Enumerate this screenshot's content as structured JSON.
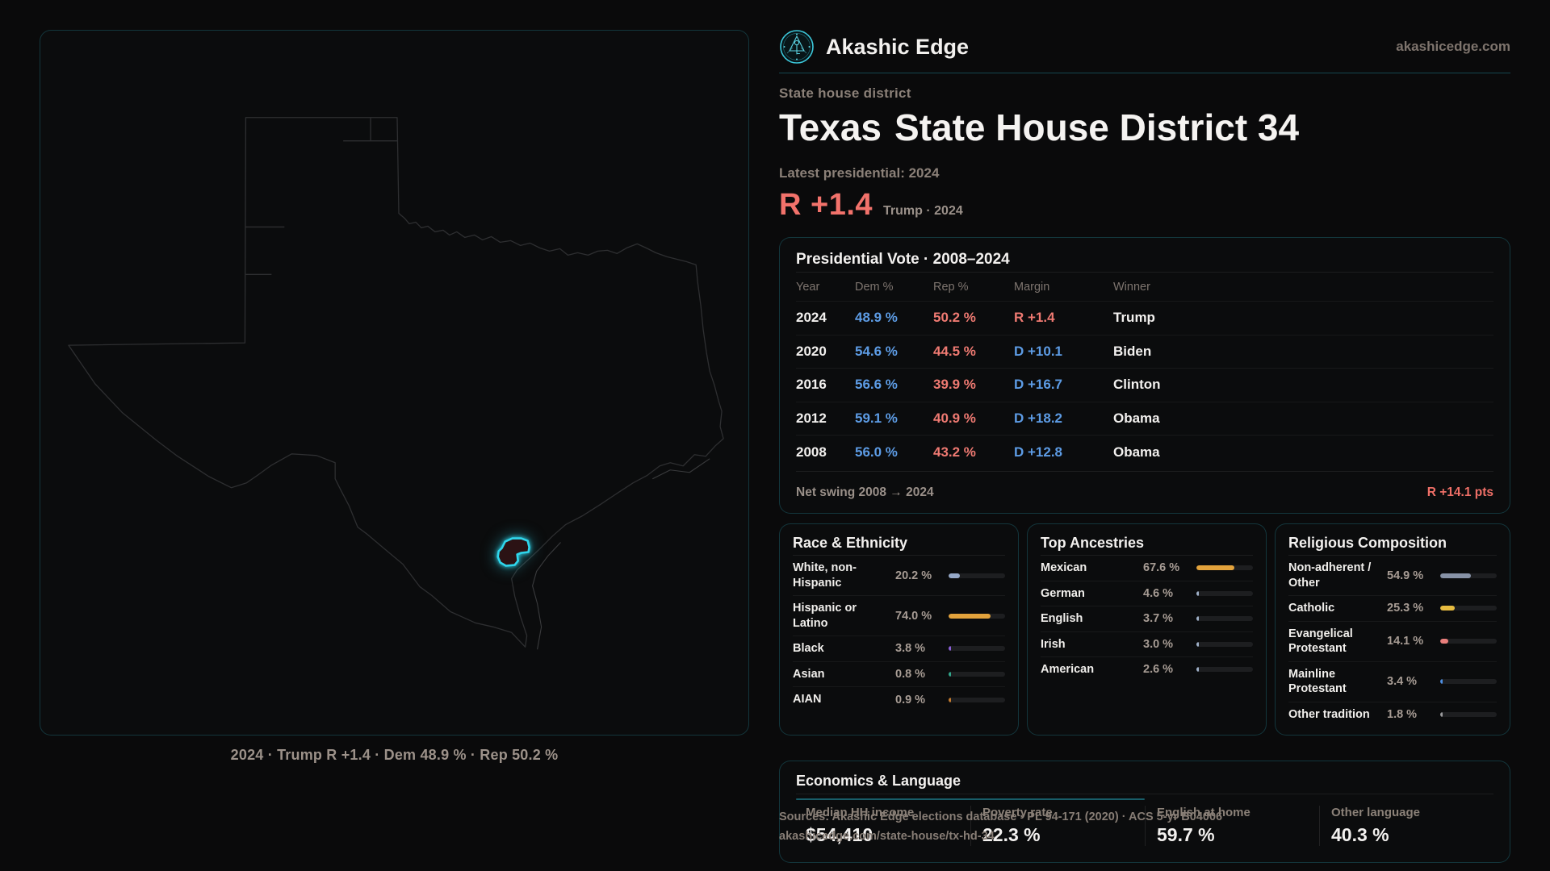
{
  "header": {
    "brand": "Akashic Edge",
    "domain": "akashicedge.com",
    "kicker": "State house district",
    "title_state": "Texas",
    "title_rest": "State House District 34",
    "latest_label": "Latest presidential: 2024",
    "headline_margin": "R +1.4",
    "headline_sub": "Trump · 2024"
  },
  "map": {
    "caption": "2024 · Trump R +1.4 · Dem 48.9 % · Rep 50.2 %",
    "district_color": "#2fd6ec"
  },
  "presidential_table": {
    "title": "Presidential Vote · 2008–2024",
    "columns": [
      "Year",
      "Dem %",
      "Rep %",
      "Margin",
      "Winner"
    ],
    "rows": [
      {
        "year": "2024",
        "dem": "48.9 %",
        "rep": "50.2 %",
        "margin": "R +1.4",
        "margin_party": "R",
        "winner": "Trump"
      },
      {
        "year": "2020",
        "dem": "54.6 %",
        "rep": "44.5 %",
        "margin": "D +10.1",
        "margin_party": "D",
        "winner": "Biden"
      },
      {
        "year": "2016",
        "dem": "56.6 %",
        "rep": "39.9 %",
        "margin": "D +16.7",
        "margin_party": "D",
        "winner": "Clinton"
      },
      {
        "year": "2012",
        "dem": "59.1 %",
        "rep": "40.9 %",
        "margin": "D +18.2",
        "margin_party": "D",
        "winner": "Obama"
      },
      {
        "year": "2008",
        "dem": "56.0 %",
        "rep": "43.2 %",
        "margin": "D +12.8",
        "margin_party": "D",
        "winner": "Obama"
      }
    ],
    "footer_label": "Net swing 2008 → 2024",
    "footer_value": "R +14.1 pts"
  },
  "race_ethnicity": {
    "title": "Race & Ethnicity",
    "rows": [
      {
        "label": "White, non-Hispanic",
        "value": "20.2 %",
        "pct": 20.2,
        "color": "#96a9c8"
      },
      {
        "label": "Hispanic or Latino",
        "value": "74.0 %",
        "pct": 74.0,
        "color": "#e3a33c"
      },
      {
        "label": "Black",
        "value": "3.8 %",
        "pct": 3.8,
        "color": "#8b5fd8"
      },
      {
        "label": "Asian",
        "value": "0.8 %",
        "pct": 0.8,
        "color": "#31a78c"
      },
      {
        "label": "AIAN",
        "value": "0.9 %",
        "pct": 0.9,
        "color": "#c57c2f"
      }
    ]
  },
  "ancestries": {
    "title": "Top Ancestries",
    "rows": [
      {
        "label": "Mexican",
        "value": "67.6 %",
        "pct": 67.6,
        "color": "#e3a33c"
      },
      {
        "label": "German",
        "value": "4.6 %",
        "pct": 4.6,
        "color": "#9fb0c8"
      },
      {
        "label": "English",
        "value": "3.7 %",
        "pct": 3.7,
        "color": "#9fb0c8"
      },
      {
        "label": "Irish",
        "value": "3.0 %",
        "pct": 3.0,
        "color": "#9fb0c8"
      },
      {
        "label": "American",
        "value": "2.6 %",
        "pct": 2.6,
        "color": "#9fb0c8"
      }
    ]
  },
  "religion": {
    "title": "Religious Composition",
    "rows": [
      {
        "label": "Non-adherent / Other",
        "value": "54.9 %",
        "pct": 54.9,
        "color": "#8792a6"
      },
      {
        "label": "Catholic",
        "value": "25.3 %",
        "pct": 25.3,
        "color": "#e7bc40"
      },
      {
        "label": "Evangelical Protestant",
        "value": "14.1 %",
        "pct": 14.1,
        "color": "#e97f7c"
      },
      {
        "label": "Mainline Protestant",
        "value": "3.4 %",
        "pct": 3.4,
        "color": "#4e8fe2"
      },
      {
        "label": "Other tradition",
        "value": "1.8 %",
        "pct": 1.8,
        "color": "#9a9a9c"
      }
    ]
  },
  "economics": {
    "title": "Economics & Language",
    "stats": [
      {
        "label": "Median HH income",
        "value": "$54,410"
      },
      {
        "label": "Poverty rate",
        "value": "22.3 %"
      },
      {
        "label": "English at home",
        "value": "59.7 %"
      },
      {
        "label": "Other language",
        "value": "40.3 %"
      }
    ]
  },
  "sources": {
    "line1": "Sources: Akashic Edge elections database · PL 94-171 (2020) · ACS 5-yr B04006",
    "line2": "akashicedge.com/state-house/tx-hd-34"
  },
  "colors": {
    "accent_cyan": "#2fd6ec",
    "dem_blue": "#5d9ce5",
    "rep_red": "#ef7a72"
  }
}
